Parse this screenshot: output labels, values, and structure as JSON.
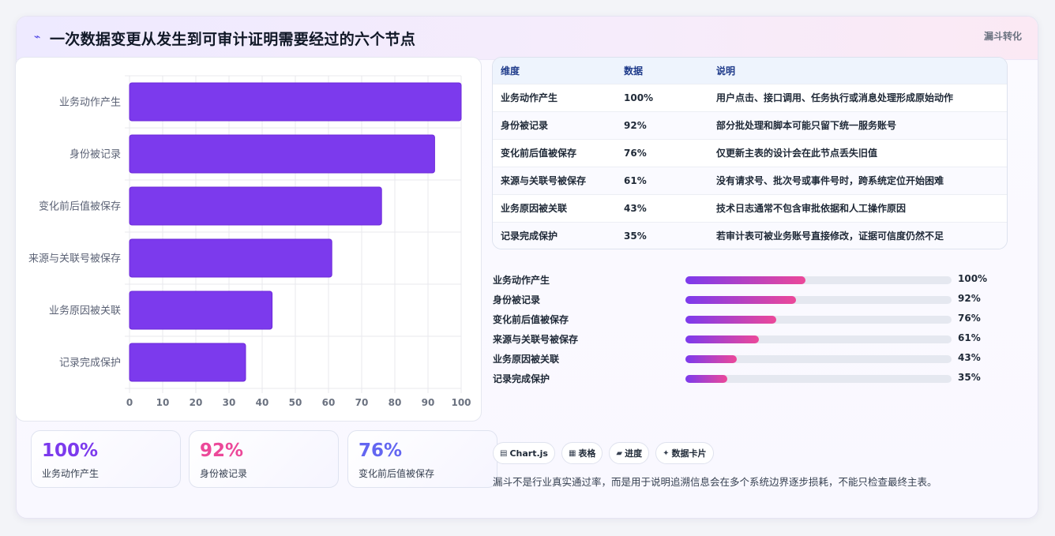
{
  "header": {
    "icon": "lightning-icon",
    "icon_glyph": "⌁",
    "title": "一次数据变更从发生到可审计证明需要经过的六个节点",
    "tag": "漏斗转化"
  },
  "chart_data": {
    "type": "bar",
    "orientation": "horizontal",
    "categories": [
      "业务动作产生",
      "身份被记录",
      "变化前后值被保存",
      "来源与关联号被保存",
      "业务原因被关联",
      "记录完成保护"
    ],
    "values": [
      100,
      92,
      76,
      61,
      43,
      35
    ],
    "xlim": [
      0,
      100
    ],
    "ticks": [
      "0",
      "10",
      "20",
      "30",
      "40",
      "50",
      "60",
      "70",
      "80",
      "90",
      "100"
    ],
    "bar_color": "#7c3aed",
    "grid": true,
    "title": "",
    "xlabel": "",
    "ylabel": ""
  },
  "stats": [
    {
      "value": "100%",
      "label": "业务动作产生",
      "color": "#7c3aed"
    },
    {
      "value": "92%",
      "label": "身份被记录",
      "color": "#ec4899"
    },
    {
      "value": "76%",
      "label": "变化前后值被保存",
      "color": "#6366f1"
    }
  ],
  "table": {
    "headers": [
      "维度",
      "数据",
      "说明"
    ],
    "rows": [
      {
        "dim": "业务动作产生",
        "val": "100%",
        "desc": "用户点击、接口调用、任务执行或消息处理形成原始动作"
      },
      {
        "dim": "身份被记录",
        "val": "92%",
        "desc": "部分批处理和脚本可能只留下统一服务账号"
      },
      {
        "dim": "变化前后值被保存",
        "val": "76%",
        "desc": "仅更新主表的设计会在此节点丢失旧值"
      },
      {
        "dim": "来源与关联号被保存",
        "val": "61%",
        "desc": "没有请求号、批次号或事件号时，跨系统定位开始困难"
      },
      {
        "dim": "业务原因被关联",
        "val": "43%",
        "desc": "技术日志通常不包含审批依据和人工操作原因"
      },
      {
        "dim": "记录完成保护",
        "val": "35%",
        "desc": "若审计表可被业务账号直接修改，证据可信度仍然不足"
      }
    ]
  },
  "progress": [
    {
      "label": "业务动作产生",
      "value_text": "100%",
      "fraction": 0.45
    },
    {
      "label": "身份被记录",
      "value_text": "92%",
      "fraction": 0.414
    },
    {
      "label": "变化前后值被保存",
      "value_text": "76%",
      "fraction": 0.342
    },
    {
      "label": "来源与关联号被保存",
      "value_text": "61%",
      "fraction": 0.275
    },
    {
      "label": "业务原因被关联",
      "value_text": "43%",
      "fraction": 0.194
    },
    {
      "label": "记录完成保护",
      "value_text": "35%",
      "fraction": 0.158
    }
  ],
  "chips": [
    {
      "icon": "chart-icon",
      "glyph": "▤",
      "label": "Chart.js"
    },
    {
      "icon": "table-icon",
      "glyph": "▦",
      "label": "表格"
    },
    {
      "icon": "progress-icon",
      "glyph": "▰",
      "label": "进度"
    },
    {
      "icon": "sparkle-icon",
      "glyph": "✦",
      "label": "数据卡片"
    }
  ],
  "footnote": "漏斗不是行业真实通过率，而是用于说明追溯信息会在多个系统边界逐步损耗，不能只检查最终主表。"
}
